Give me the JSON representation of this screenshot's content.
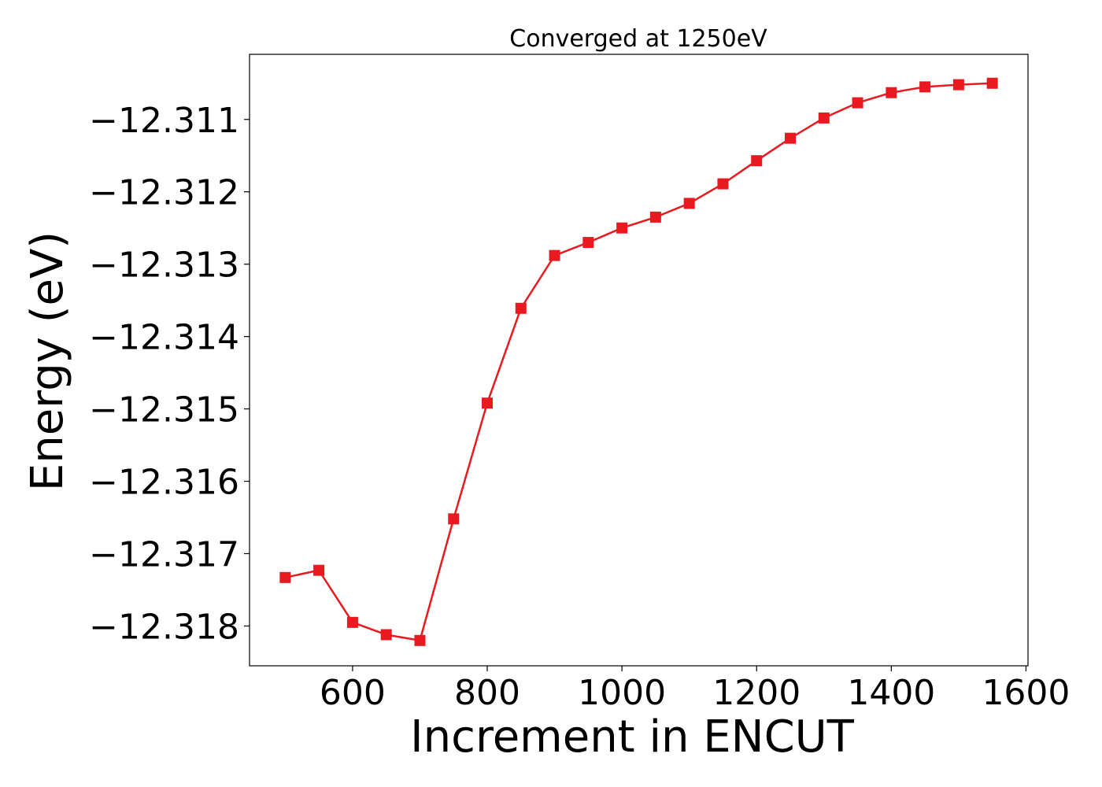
{
  "chart_data": {
    "type": "line",
    "title": "Converged at 1250eV",
    "xlabel": "Increment in ENCUT",
    "ylabel": "Energy (eV)",
    "xlim": [
      447,
      1603
    ],
    "ylim": [
      -12.31855,
      -12.3101
    ],
    "xticks": [
      600,
      800,
      1000,
      1200,
      1400,
      1600
    ],
    "xtick_labels": [
      "600",
      "800",
      "1000",
      "1200",
      "1400",
      "1600"
    ],
    "yticks": [
      -12.311,
      -12.312,
      -12.313,
      -12.314,
      -12.315,
      -12.316,
      -12.317,
      -12.318
    ],
    "ytick_labels": [
      "−12.311",
      "−12.312",
      "−12.313",
      "−12.314",
      "−12.315",
      "−12.316",
      "−12.317",
      "−12.318"
    ],
    "grid": false,
    "marker": "square",
    "color": "#e8191f",
    "series": [
      {
        "x": [
          500,
          550,
          600,
          650,
          700,
          750,
          800,
          850,
          900,
          950,
          1000,
          1050,
          1100,
          1150,
          1200,
          1250,
          1300,
          1350,
          1400,
          1450,
          1500,
          1550
        ],
        "y": [
          -12.31733,
          -12.31723,
          -12.31795,
          -12.31812,
          -12.3182,
          -12.31652,
          -12.31492,
          -12.31361,
          -12.31288,
          -12.3127,
          -12.3125,
          -12.31235,
          -12.31216,
          -12.31189,
          -12.31157,
          -12.31126,
          -12.31098,
          -12.31077,
          -12.31063,
          -12.31055,
          -12.31052,
          -12.3105
        ]
      }
    ]
  }
}
